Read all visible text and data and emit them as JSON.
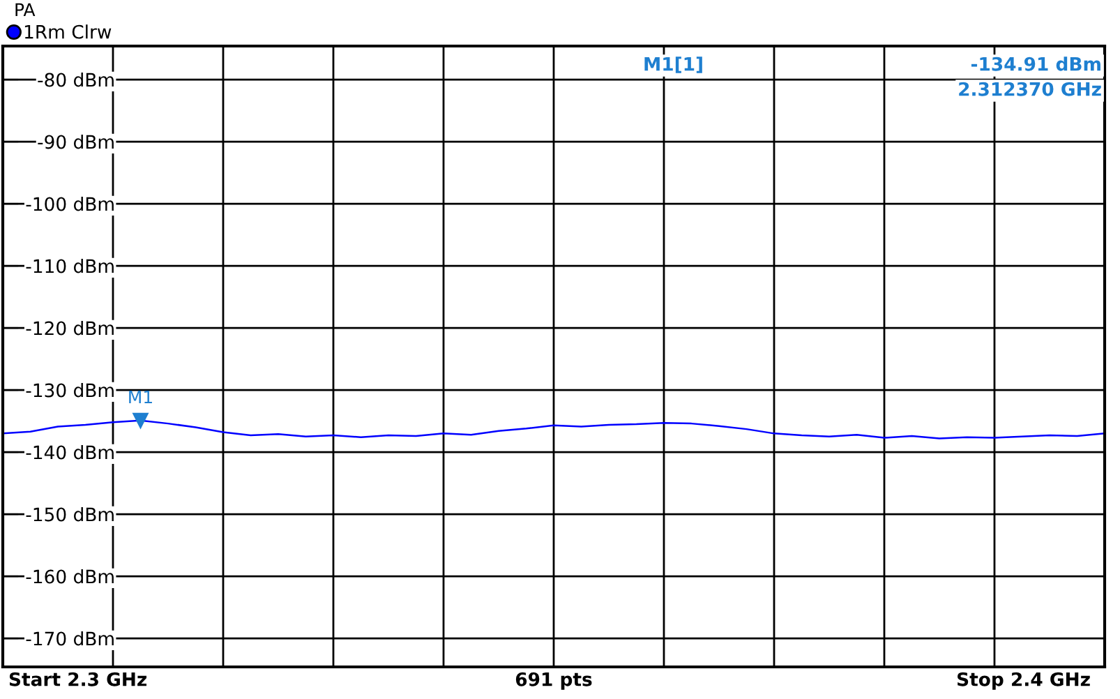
{
  "chart_data": {
    "type": "line",
    "title": "PA",
    "categories": [
      null,
      null,
      null,
      null,
      null,
      null,
      null,
      null,
      null,
      null,
      null,
      null,
      null,
      null,
      null,
      null,
      null,
      null,
      null,
      null,
      null,
      null,
      null,
      null,
      null,
      null,
      null,
      null,
      null,
      null,
      null,
      null,
      null,
      null,
      null,
      null,
      null,
      null,
      null,
      null,
      null
    ],
    "series": [
      {
        "name": "1Rm Clrw",
        "color": "#0000ff",
        "values": [
          -137.0,
          -136.7,
          -135.9,
          -135.6,
          -135.2,
          -134.9,
          -135.4,
          -136.0,
          -136.8,
          -137.3,
          -137.1,
          -137.5,
          -137.3,
          -137.6,
          -137.3,
          -137.4,
          -137.0,
          -137.2,
          -136.6,
          -136.2,
          -135.7,
          -135.9,
          -135.6,
          -135.5,
          -135.3,
          -135.4,
          -135.8,
          -136.3,
          -137.0,
          -137.3,
          -137.5,
          -137.2,
          -137.7,
          -137.4,
          -137.8,
          -137.6,
          -137.7,
          -137.5,
          -137.3,
          -137.4,
          -137.0
        ]
      }
    ],
    "ylim": [
      -174.6,
      -74.6
    ],
    "yticks": [
      {
        "value": -80,
        "label": "-80 dBm"
      },
      {
        "value": -90,
        "label": "-90 dBm"
      },
      {
        "value": -100,
        "label": "-100 dBm"
      },
      {
        "value": -110,
        "label": "-110 dBm"
      },
      {
        "value": -120,
        "label": "-120 dBm"
      },
      {
        "value": -130,
        "label": "-130 dBm"
      },
      {
        "value": -140,
        "label": "-140 dBm"
      },
      {
        "value": -150,
        "label": "-150 dBm"
      },
      {
        "value": -160,
        "label": "-160 dBm"
      },
      {
        "value": -170,
        "label": "-170 dBm"
      }
    ],
    "tick_labels": "y",
    "grid": true,
    "legend": "top left",
    "marker": "none",
    "line_style": "solid",
    "annotations": [
      {
        "text": "M1",
        "y": -134.91
      },
      "M1[1]",
      "-134.91 dBm",
      "2.312370 GHz",
      "Start 2.3 GHz",
      "691 pts",
      "Stop 2.4 GHz"
    ]
  }
}
